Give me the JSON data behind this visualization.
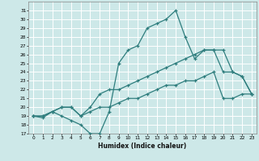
{
  "xlabel": "Humidex (Indice chaleur)",
  "xlim": [
    -0.5,
    23.5
  ],
  "ylim": [
    17,
    32
  ],
  "yticks": [
    17,
    18,
    19,
    20,
    21,
    22,
    23,
    24,
    25,
    26,
    27,
    28,
    29,
    30,
    31
  ],
  "xticks": [
    0,
    1,
    2,
    3,
    4,
    5,
    6,
    7,
    8,
    9,
    10,
    11,
    12,
    13,
    14,
    15,
    16,
    17,
    18,
    19,
    20,
    21,
    22,
    23
  ],
  "bg_color": "#cde8e8",
  "grid_color": "#ffffff",
  "line_color": "#2e7d7d",
  "line1_x": [
    0,
    1,
    2,
    3,
    4,
    5,
    6,
    7,
    8,
    9,
    10,
    11,
    12,
    13,
    14,
    15,
    16,
    17,
    18,
    19,
    20,
    21,
    22,
    23
  ],
  "line1_y": [
    19,
    18.8,
    19.5,
    19,
    18.5,
    18,
    17,
    17,
    19.5,
    25,
    26.5,
    27,
    29,
    29.5,
    30,
    31,
    28,
    25.5,
    26.5,
    26.5,
    24,
    24,
    23.5,
    21.5
  ],
  "line2_x": [
    0,
    1,
    2,
    3,
    4,
    5,
    6,
    7,
    8,
    9,
    10,
    11,
    12,
    13,
    14,
    15,
    16,
    17,
    18,
    19,
    20,
    21,
    22,
    23
  ],
  "line2_y": [
    19,
    19,
    19.5,
    20,
    20,
    19,
    20,
    21.5,
    22,
    22,
    22.5,
    23,
    23.5,
    24,
    24.5,
    25,
    25.5,
    26,
    26.5,
    26.5,
    26.5,
    24,
    23.5,
    21.5
  ],
  "line3_x": [
    0,
    1,
    2,
    3,
    4,
    5,
    6,
    7,
    8,
    9,
    10,
    11,
    12,
    13,
    14,
    15,
    16,
    17,
    18,
    19,
    20,
    21,
    22,
    23
  ],
  "line3_y": [
    19,
    19,
    19.5,
    20,
    20,
    19,
    19.5,
    20,
    20,
    20.5,
    21,
    21,
    21.5,
    22,
    22.5,
    22.5,
    23,
    23,
    23.5,
    24,
    21,
    21,
    21.5,
    21.5
  ]
}
